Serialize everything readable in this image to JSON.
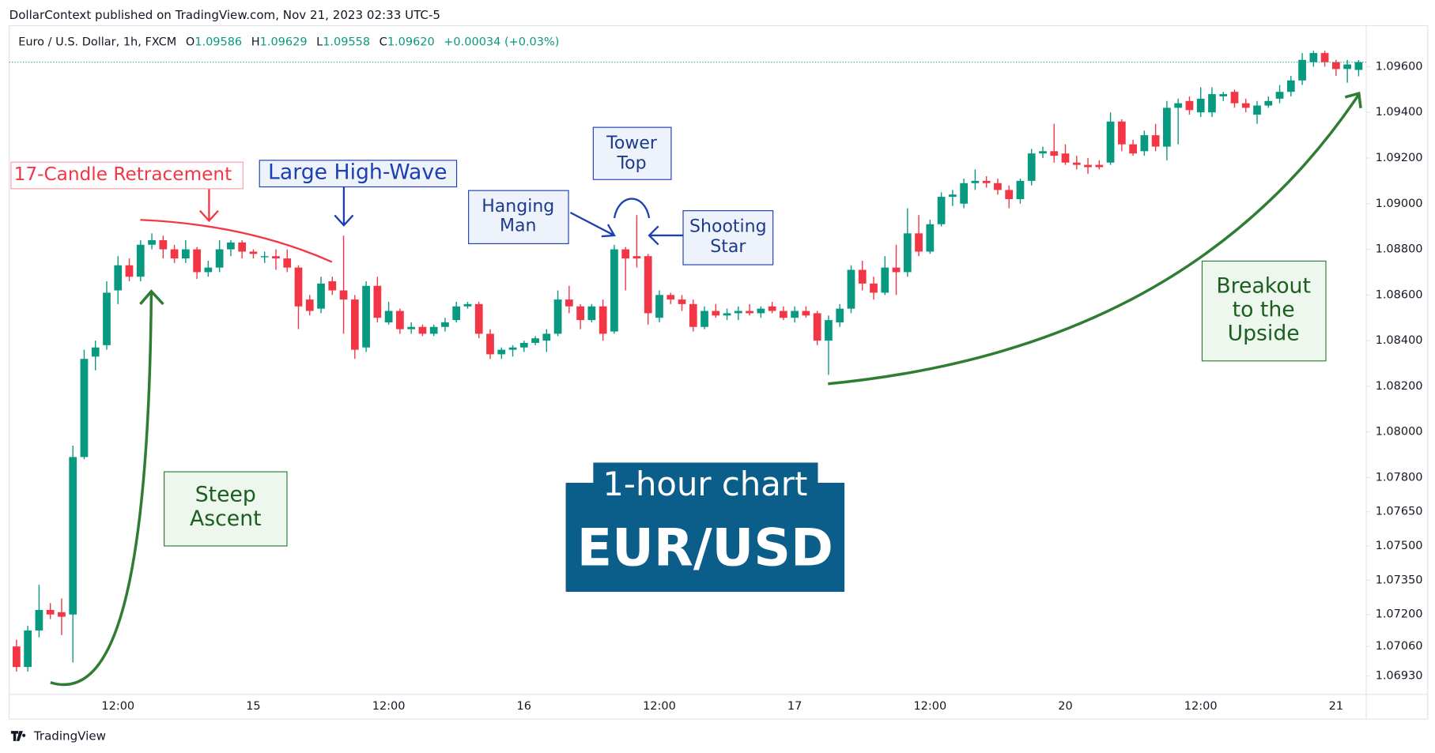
{
  "header": {
    "byline": "DollarContext published on TradingView.com, Nov 21, 2023 02:33 UTC-5",
    "symbol": "Euro / U.S. Dollar, 1h, FXCM",
    "ohlc": [
      {
        "label": "O",
        "value": "1.09586"
      },
      {
        "label": "H",
        "value": "1.09629"
      },
      {
        "label": "L",
        "value": "1.09558"
      },
      {
        "label": "C",
        "value": "1.09620"
      }
    ],
    "change": "+0.00034 (+0.03%)"
  },
  "footer": {
    "brand": "TradingView"
  },
  "chart_data": {
    "type": "candlestick",
    "up_color": "#089981",
    "down_color": "#f23645",
    "grid": false,
    "categories": [
      null,
      null,
      null,
      null,
      null,
      null,
      null,
      null,
      null,
      "12:00",
      null,
      null,
      null,
      null,
      null,
      null,
      null,
      null,
      null,
      null,
      null,
      "15",
      null,
      null,
      null,
      null,
      null,
      null,
      null,
      null,
      null,
      null,
      null,
      "12:00",
      null,
      null,
      null,
      null,
      null,
      null,
      null,
      null,
      null,
      null,
      null,
      "16",
      null,
      null,
      null,
      null,
      null,
      null,
      null,
      null,
      null,
      null,
      null,
      "12:00",
      null,
      null,
      null,
      null,
      null,
      null,
      null,
      null,
      null,
      null,
      null,
      "17",
      null,
      null,
      null,
      null,
      null,
      null,
      null,
      null,
      null,
      null,
      null,
      "12:00",
      null,
      null,
      null,
      null,
      null,
      null,
      null,
      null,
      null,
      null,
      null,
      "20",
      null,
      null,
      null,
      null,
      null,
      null,
      null,
      null,
      null,
      null,
      null,
      "12:00",
      null,
      null,
      null,
      null,
      null,
      null,
      null,
      null,
      null,
      null,
      null,
      "21",
      null,
      null
    ],
    "open": [
      1.0706,
      1.0697,
      1.0713,
      1.0722,
      1.0721,
      1.072,
      1.0789,
      1.0833,
      1.0838,
      1.0862,
      1.0873,
      1.0868,
      1.0882,
      1.0884,
      1.088,
      1.0876,
      1.088,
      1.087,
      1.0872,
      1.088,
      1.0883,
      1.0879,
      1.0877,
      1.0877,
      1.0876,
      1.0872,
      1.0858,
      1.0854,
      1.0866,
      1.0862,
      1.0858,
      1.0837,
      1.0864,
      1.0848,
      1.0853,
      1.0845,
      1.0846,
      1.0843,
      1.0846,
      1.0849,
      1.0855,
      1.0856,
      1.0843,
      1.0834,
      1.0836,
      1.0837,
      1.0839,
      1.084,
      1.0843,
      1.0858,
      1.0855,
      1.0849,
      1.0855,
      1.0844,
      1.088,
      1.0877,
      1.0877,
      1.085,
      1.086,
      1.0858,
      1.0856,
      1.0846,
      1.0853,
      1.0851,
      1.0852,
      1.0853,
      1.0852,
      1.0855,
      1.0853,
      1.085,
      1.0853,
      1.0852,
      1.084,
      1.0848,
      1.0854,
      1.0871,
      1.0865,
      1.0861,
      1.0872,
      1.087,
      1.0887,
      1.0879,
      1.0891,
      1.0903,
      1.09,
      1.0909,
      1.091,
      1.0909,
      1.0906,
      1.0902,
      1.091,
      1.0922,
      1.0923,
      1.0922,
      1.0918,
      1.0917,
      1.0917,
      1.0918,
      1.0936,
      1.0926,
      1.0923,
      1.093,
      1.0925,
      1.0942,
      1.0945,
      1.094,
      1.094,
      1.0947,
      1.0949,
      1.0944,
      1.0939,
      1.0943,
      1.0946,
      1.0949,
      1.0954,
      1.0962,
      1.0966,
      1.0962,
      1.0959,
      1.09586
    ],
    "high": [
      1.0709,
      1.0715,
      1.0733,
      1.0725,
      1.0727,
      1.0794,
      1.0836,
      1.084,
      1.0866,
      1.0877,
      1.0876,
      1.0884,
      1.0887,
      1.0886,
      1.0882,
      1.0884,
      1.0881,
      1.0875,
      1.0884,
      1.0884,
      1.0884,
      1.088,
      1.0879,
      1.088,
      1.088,
      1.0873,
      1.086,
      1.0868,
      1.0868,
      1.0886,
      1.086,
      1.0866,
      1.0868,
      1.0857,
      1.0854,
      1.0848,
      1.0847,
      1.0847,
      1.085,
      1.0857,
      1.0857,
      1.0857,
      1.0845,
      1.0837,
      1.0838,
      1.084,
      1.0842,
      1.0845,
      1.0862,
      1.0864,
      1.0856,
      1.0856,
      1.0858,
      1.0882,
      1.0881,
      1.0895,
      1.0878,
      1.0862,
      1.0861,
      1.086,
      1.0858,
      1.0855,
      1.0856,
      1.0854,
      1.0855,
      1.0856,
      1.0855,
      1.0857,
      1.0855,
      1.0855,
      1.0855,
      1.0853,
      1.0851,
      1.0856,
      1.0873,
      1.0875,
      1.0868,
      1.0877,
      1.0882,
      1.0898,
      1.0895,
      1.0893,
      1.0905,
      1.0906,
      1.0911,
      1.0915,
      1.0912,
      1.0911,
      1.0908,
      1.0911,
      1.0924,
      1.0925,
      1.0935,
      1.0926,
      1.0921,
      1.092,
      1.0919,
      1.094,
      1.0937,
      1.0928,
      1.0932,
      1.0935,
      1.0945,
      1.0946,
      1.0947,
      1.0951,
      1.0951,
      1.0949,
      1.095,
      1.0946,
      1.0945,
      1.0947,
      1.0952,
      1.0956,
      1.0966,
      1.0967,
      1.0967,
      1.0963,
      1.0963,
      1.09629
    ],
    "low": [
      1.0695,
      1.0695,
      1.071,
      1.0718,
      1.0711,
      1.0699,
      1.0788,
      1.0827,
      1.0836,
      1.0856,
      1.0866,
      1.0866,
      1.088,
      1.0876,
      1.0874,
      1.0874,
      1.0867,
      1.0868,
      1.087,
      1.0877,
      1.0876,
      1.0876,
      1.0874,
      1.0871,
      1.087,
      1.0845,
      1.0851,
      1.0852,
      1.086,
      1.0843,
      1.0832,
      1.0835,
      1.0848,
      1.0847,
      1.0843,
      1.0843,
      1.0842,
      1.0842,
      1.0844,
      1.0848,
      1.0854,
      1.0841,
      1.0832,
      1.0832,
      1.0833,
      1.0835,
      1.0838,
      1.0835,
      1.0842,
      1.0852,
      1.0845,
      1.0848,
      1.084,
      1.0843,
      1.0862,
      1.0872,
      1.0847,
      1.0848,
      1.0856,
      1.0853,
      1.0844,
      1.0845,
      1.085,
      1.0849,
      1.0849,
      1.0851,
      1.085,
      1.0852,
      1.0849,
      1.0848,
      1.085,
      1.0838,
      1.0825,
      1.0846,
      1.0852,
      1.0862,
      1.0858,
      1.086,
      1.086,
      1.0868,
      1.0877,
      1.0878,
      1.089,
      1.0899,
      1.0898,
      1.0906,
      1.0907,
      1.0904,
      1.0898,
      1.09,
      1.0908,
      1.092,
      1.0918,
      1.0917,
      1.0915,
      1.0913,
      1.0915,
      1.0917,
      1.0923,
      1.0921,
      1.0921,
      1.0923,
      1.0919,
      1.0926,
      1.0939,
      1.0938,
      1.0938,
      1.0945,
      1.0942,
      1.094,
      1.0935,
      1.0942,
      1.0944,
      1.0947,
      1.0952,
      1.096,
      1.096,
      1.0956,
      1.0953,
      1.09558
    ],
    "close": [
      1.0697,
      1.0713,
      1.0722,
      1.072,
      1.0719,
      1.0789,
      1.0832,
      1.0837,
      1.0861,
      1.0873,
      1.0868,
      1.0882,
      1.0884,
      1.088,
      1.0876,
      1.088,
      1.087,
      1.0872,
      1.088,
      1.0883,
      1.0879,
      1.0878,
      1.0877,
      1.0876,
      1.0872,
      1.0855,
      1.0853,
      1.0865,
      1.0862,
      1.0858,
      1.0836,
      1.0864,
      1.085,
      1.0853,
      1.0845,
      1.0846,
      1.0843,
      1.0846,
      1.0848,
      1.0855,
      1.0856,
      1.0843,
      1.0834,
      1.0836,
      1.0837,
      1.0839,
      1.0841,
      1.0843,
      1.0858,
      1.0855,
      1.0849,
      1.0855,
      1.0843,
      1.088,
      1.0876,
      1.0876,
      1.0852,
      1.086,
      1.0858,
      1.0856,
      1.0846,
      1.0853,
      1.0851,
      1.0852,
      1.0853,
      1.0852,
      1.0854,
      1.0853,
      1.085,
      1.0853,
      1.0851,
      1.084,
      1.0849,
      1.0854,
      1.0871,
      1.0865,
      1.0861,
      1.0872,
      1.087,
      1.0887,
      1.0879,
      1.0891,
      1.0903,
      1.0904,
      1.0909,
      1.091,
      1.0909,
      1.0906,
      1.0902,
      1.091,
      1.0922,
      1.0923,
      1.0921,
      1.0918,
      1.0917,
      1.0916,
      1.0916,
      1.0936,
      1.0926,
      1.0922,
      1.093,
      1.0925,
      1.0942,
      1.0944,
      1.0941,
      1.0946,
      1.0948,
      1.0948,
      1.0944,
      1.0942,
      1.0943,
      1.0945,
      1.0949,
      1.0954,
      1.0963,
      1.0966,
      1.0962,
      1.0959,
      1.0961,
      1.0962
    ],
    "ylim": [
      1.0685,
      1.0978
    ],
    "yticks": [
      {
        "value": 1.0693,
        "label": "1.06930"
      },
      {
        "value": 1.0706,
        "label": "1.07060"
      },
      {
        "value": 1.072,
        "label": "1.07200"
      },
      {
        "value": 1.0735,
        "label": "1.07350"
      },
      {
        "value": 1.075,
        "label": "1.07500"
      },
      {
        "value": 1.0765,
        "label": "1.07650"
      },
      {
        "value": 1.078,
        "label": "1.07800"
      },
      {
        "value": 1.08,
        "label": "1.08000"
      },
      {
        "value": 1.082,
        "label": "1.08200"
      },
      {
        "value": 1.084,
        "label": "1.08400"
      },
      {
        "value": 1.086,
        "label": "1.08600"
      },
      {
        "value": 1.088,
        "label": "1.08800"
      },
      {
        "value": 1.09,
        "label": "1.09000"
      },
      {
        "value": 1.092,
        "label": "1.09200"
      },
      {
        "value": 1.094,
        "label": "1.09400"
      },
      {
        "value": 1.096,
        "label": "1.09600"
      }
    ],
    "annotations": [
      {
        "lines": [
          "17-Candle Retracement"
        ]
      },
      {
        "lines": [
          "Large High-Wave"
        ]
      },
      {
        "lines": [
          "Hanging",
          "Man"
        ]
      },
      {
        "lines": [
          "Tower",
          "Top"
        ]
      },
      {
        "lines": [
          "Shooting",
          "Star"
        ]
      },
      {
        "lines": [
          "Steep",
          "Ascent"
        ]
      },
      {
        "lines": [
          "Breakout",
          "to the",
          "Upside"
        ]
      }
    ],
    "banner": {
      "subtitle": "1-hour chart",
      "title": "EUR/USD"
    }
  }
}
